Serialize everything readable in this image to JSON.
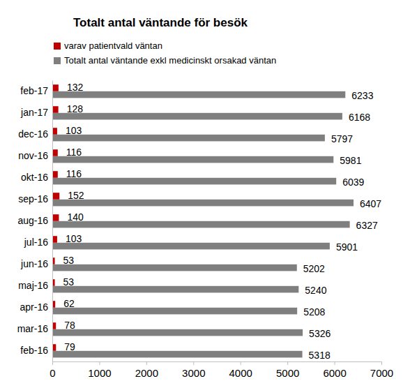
{
  "chart_data": {
    "type": "bar",
    "orientation": "horizontal",
    "title": "Totalt antal väntande för besök",
    "categories": [
      "feb-17",
      "jan-17",
      "dec-16",
      "nov-16",
      "okt-16",
      "sep-16",
      "aug-16",
      "jul-16",
      "jun-16",
      "maj-16",
      "apr-16",
      "mar-16",
      "feb-16"
    ],
    "series": [
      {
        "name": "varav patientvald väntan",
        "color": "#c00000",
        "values": [
          132,
          128,
          103,
          116,
          116,
          152,
          140,
          103,
          53,
          53,
          62,
          78,
          79
        ]
      },
      {
        "name": "Totalt antal väntande exkl medicinskt orsakad väntan",
        "color": "#7f7f7f",
        "values": [
          6233,
          6168,
          5797,
          5981,
          6039,
          6407,
          6327,
          5901,
          5202,
          5240,
          5208,
          5326,
          5318
        ]
      }
    ],
    "xlim": [
      0,
      7000
    ],
    "xticks": [
      0,
      1000,
      2000,
      3000,
      4000,
      5000,
      6000,
      7000
    ],
    "grid": false,
    "legend": "top-left",
    "data_labels": true
  }
}
